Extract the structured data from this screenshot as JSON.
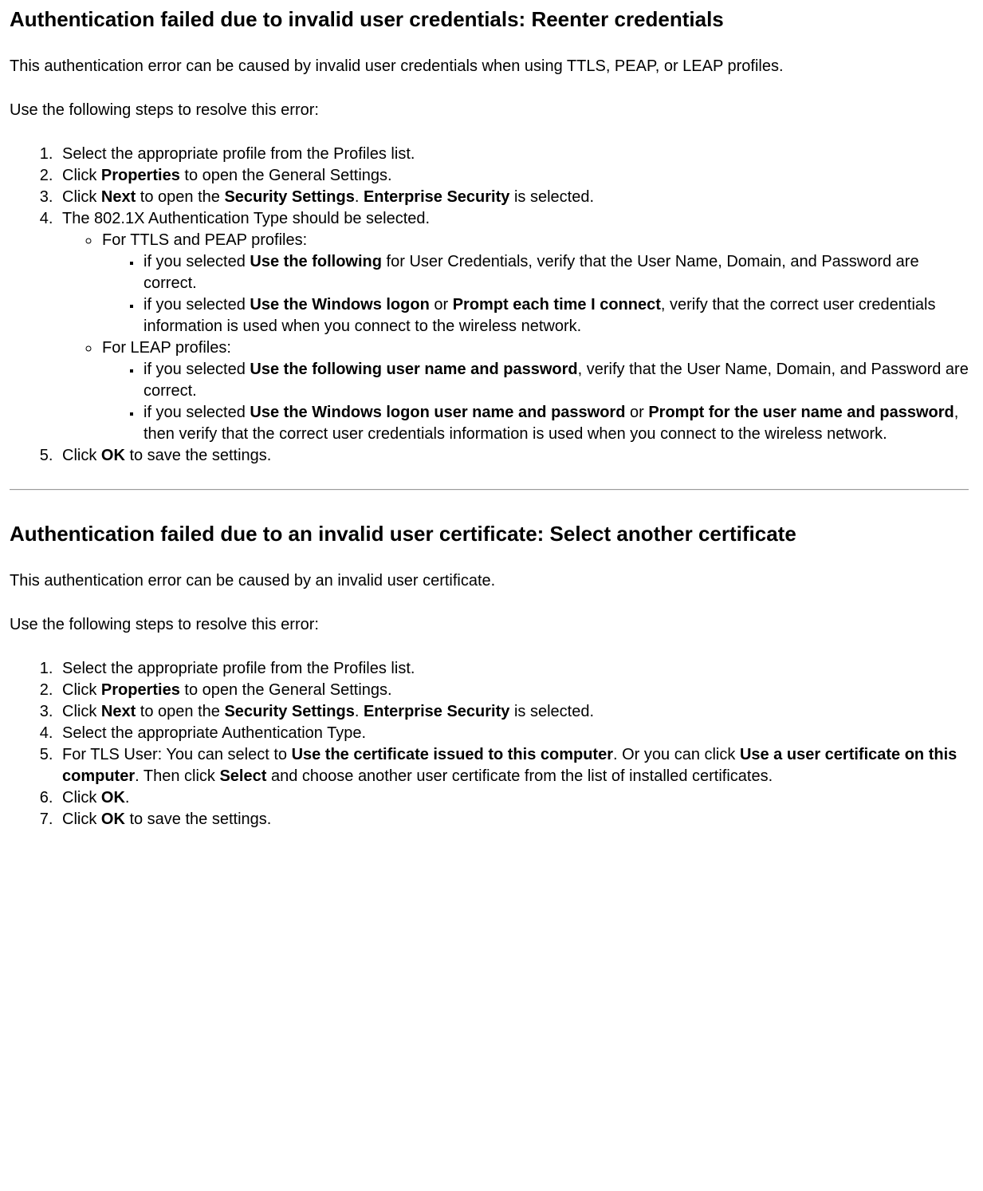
{
  "section1": {
    "title": "Authentication failed due to invalid user credentials: Reenter credentials",
    "intro": "This authentication error can be caused by invalid user credentials when using TTLS, PEAP, or LEAP profiles.",
    "lead": "Use the following steps to resolve this error:",
    "step1": "Select the appropriate profile from the Profiles list.",
    "step2_a": "Click ",
    "step2_b": "Properties",
    "step2_c": " to open the General Settings.",
    "step3_a": "Click ",
    "step3_b": "Next",
    "step3_c": " to open the ",
    "step3_d": "Security Settings",
    "step3_e": ". ",
    "step3_f": "Enterprise Security",
    "step3_g": " is selected.",
    "step4": "The 802.1X Authentication Type should be selected.",
    "ttls_label": "For TTLS and PEAP profiles:",
    "ttls_i1_a": "if you selected ",
    "ttls_i1_b": "Use the following",
    "ttls_i1_c": " for User Credentials, verify that the User Name, Domain, and Password are correct.",
    "ttls_i2_a": "if you selected ",
    "ttls_i2_b": "Use the Windows logon",
    "ttls_i2_c": " or ",
    "ttls_i2_d": "Prompt each time I connect",
    "ttls_i2_e": ", verify that the correct user credentials information is used when you connect to the wireless network.",
    "leap_label": "For LEAP profiles:",
    "leap_i1_a": "if you selected ",
    "leap_i1_b": "Use the following user name and password",
    "leap_i1_c": ", verify that the User Name, Domain, and Password are correct.",
    "leap_i2_a": "if you selected ",
    "leap_i2_b": "Use the Windows logon user name and password",
    "leap_i2_c": " or ",
    "leap_i2_d": "Prompt for the user name and password",
    "leap_i2_e": ", then verify that the correct user credentials information is used when you connect to the wireless network.",
    "step5_a": "Click ",
    "step5_b": "OK",
    "step5_c": " to save the settings."
  },
  "section2": {
    "title": "Authentication failed due to an invalid user certificate: Select another certificate",
    "intro": "This authentication error can be caused by an invalid user certificate.",
    "lead": "Use the following steps to resolve this error:",
    "step1": "Select the appropriate profile from the Profiles list.",
    "step2_a": "Click ",
    "step2_b": "Properties",
    "step2_c": " to open the General Settings.",
    "step3_a": "Click ",
    "step3_b": "Next",
    "step3_c": " to open the ",
    "step3_d": "Security Settings",
    "step3_e": ". ",
    "step3_f": "Enterprise Security",
    "step3_g": " is selected.",
    "step4": "Select the appropriate Authentication Type.",
    "step5_a": "For TLS User: You can select to ",
    "step5_b": "Use the certificate issued to this computer",
    "step5_c": ". Or you can click ",
    "step5_d": "Use a user certificate on this computer",
    "step5_e": ". Then click ",
    "step5_f": "Select",
    "step5_g": " and choose another user certificate from the list of installed certificates.",
    "step6_a": "Click ",
    "step6_b": "OK",
    "step6_c": ".",
    "step7_a": "Click ",
    "step7_b": "OK",
    "step7_c": " to save the settings."
  }
}
